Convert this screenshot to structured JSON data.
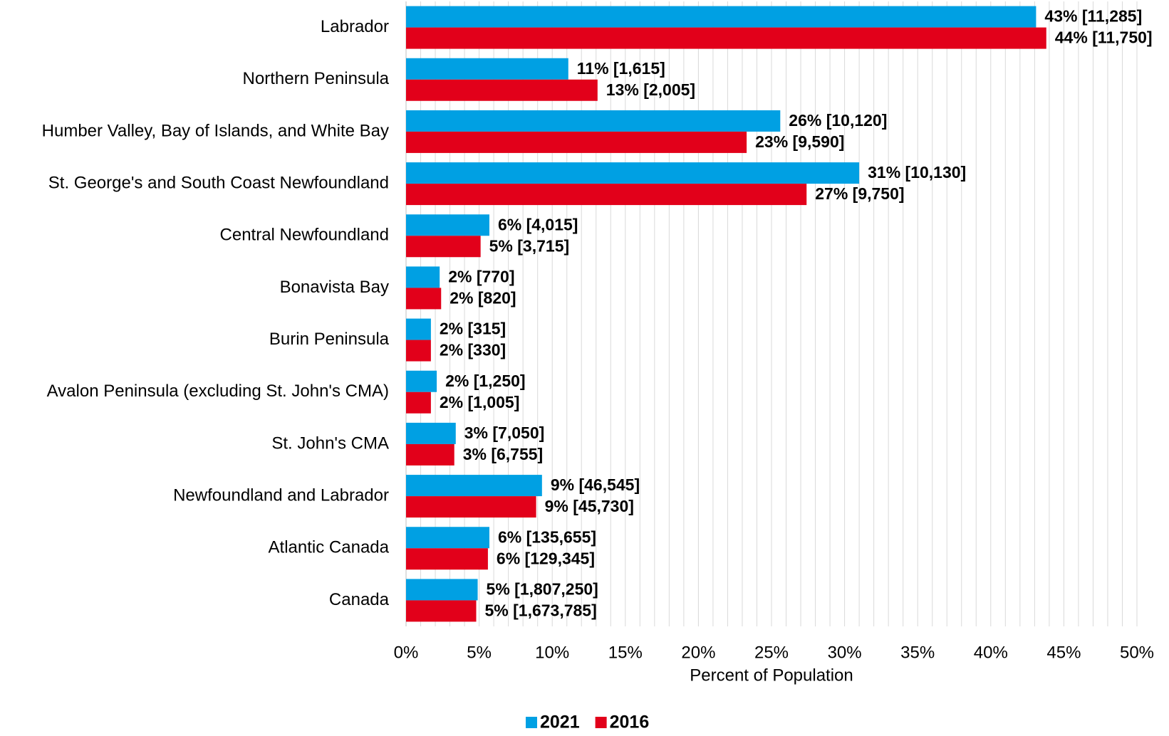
{
  "chart_data": {
    "type": "hbar",
    "x_label": "Percent of Population",
    "categories": [
      "Labrador",
      "Northern Peninsula",
      "Humber Valley, Bay of Islands, and White Bay",
      "St. George's and South Coast Newfoundland",
      "Central Newfoundland",
      "Bonavista Bay",
      "Burin Peninsula",
      "Avalon Peninsula (excluding St. John's CMA)",
      "St. John's CMA",
      "Newfoundland and Labrador",
      "Atlantic Canada",
      "Canada"
    ],
    "series": [
      {
        "name": "2021",
        "color": "#00a0e3",
        "values": [
          43.1,
          11.1,
          25.6,
          31.0,
          5.7,
          2.3,
          1.7,
          2.1,
          3.4,
          9.3,
          5.7,
          4.9
        ],
        "value_labels": [
          "43% [11,285]",
          "11% [1,615]",
          "26% [10,120]",
          "31% [10,130]",
          "6% [4,015]",
          "2% [770]",
          "2% [315]",
          "2% [1,250]",
          "3% [7,050]",
          "9% [46,545]",
          "6% [135,655]",
          "5% [1,807,250]"
        ]
      },
      {
        "name": "2016",
        "color": "#e2001a",
        "values": [
          43.8,
          13.1,
          23.3,
          27.4,
          5.1,
          2.4,
          1.7,
          1.7,
          3.3,
          8.9,
          5.6,
          4.8
        ],
        "value_labels": [
          "44% [11,750]",
          "13% [2,005]",
          "23% [9,590]",
          "27% [9,750]",
          "5% [3,715]",
          "2% [820]",
          "2% [330]",
          "2% [1,005]",
          "3% [6,755]",
          "9% [45,730]",
          "6% [129,345]",
          "5% [1,673,785]"
        ]
      }
    ],
    "xlim": [
      0,
      50
    ],
    "xticks": [
      {
        "value": 0,
        "label": "0%"
      },
      {
        "value": 5,
        "label": "5%"
      },
      {
        "value": 10,
        "label": "10%"
      },
      {
        "value": 15,
        "label": "15%"
      },
      {
        "value": 20,
        "label": "20%"
      },
      {
        "value": 25,
        "label": "25%"
      },
      {
        "value": 30,
        "label": "30%"
      },
      {
        "value": 35,
        "label": "35%"
      },
      {
        "value": 40,
        "label": "40%"
      },
      {
        "value": 45,
        "label": "45%"
      },
      {
        "value": 50,
        "label": "50%"
      }
    ],
    "minor_xticks": [
      0,
      1,
      2,
      3,
      4,
      5,
      6,
      7,
      8,
      9,
      10,
      11,
      12,
      13,
      14,
      15,
      16,
      17,
      18,
      19,
      20,
      21,
      22,
      23,
      24,
      25,
      26,
      27,
      28,
      29,
      30,
      31,
      32,
      33,
      34,
      35,
      36,
      37,
      38,
      39,
      40,
      41,
      42,
      43,
      44,
      45,
      46,
      47,
      48,
      49,
      50
    ],
    "grid": true,
    "legend": "bottom"
  }
}
